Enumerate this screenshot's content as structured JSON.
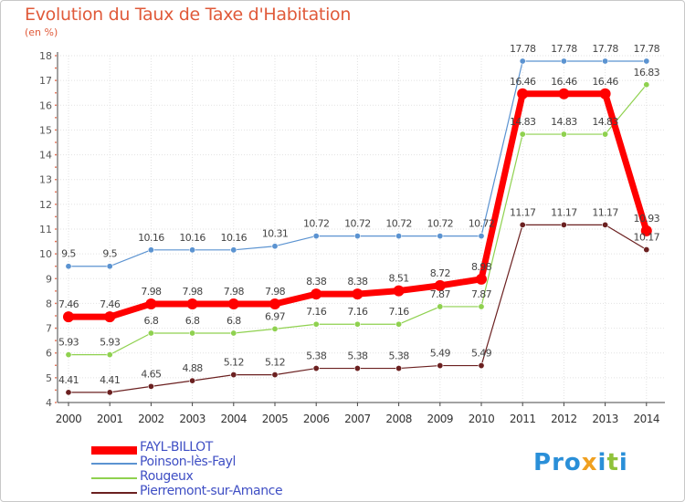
{
  "chart_data": {
    "type": "line",
    "title": "Evolution du Taux de Taxe d'Habitation",
    "subtitle": "(en %)",
    "categories": [
      "2000",
      "2001",
      "2002",
      "2003",
      "2004",
      "2005",
      "2006",
      "2007",
      "2008",
      "2009",
      "2010",
      "2011",
      "2012",
      "2013",
      "2014"
    ],
    "ylim": [
      4,
      18
    ],
    "yticks": [
      "4",
      "5",
      "6",
      "7",
      "8",
      "9",
      "10",
      "11",
      "12",
      "13",
      "14",
      "15",
      "16",
      "17",
      "18"
    ],
    "grid": true,
    "series": [
      {
        "name": "FAYL-BILLOT",
        "color": "#ff0000",
        "values": [
          7.46,
          7.46,
          7.98,
          7.98,
          7.98,
          7.98,
          8.38,
          8.38,
          8.51,
          8.72,
          8.98,
          16.46,
          16.46,
          16.46,
          10.93
        ],
        "labels": [
          "7.46",
          "7.46",
          "7.98",
          "7.98",
          "7.98",
          "7.98",
          "8.38",
          "8.38",
          "8.51",
          "8.72",
          "8.98",
          "16.46",
          "16.46",
          "16.46",
          "10.93"
        ]
      },
      {
        "name": "Poinson-lès-Fayl",
        "color": "#5b93d1",
        "values": [
          9.5,
          9.5,
          10.16,
          10.16,
          10.16,
          10.31,
          10.72,
          10.72,
          10.72,
          10.72,
          10.72,
          17.78,
          17.78,
          17.78,
          17.78
        ],
        "labels": [
          "9.5",
          "9.5",
          "10.16",
          "10.16",
          "10.16",
          "10.31",
          "10.72",
          "10.72",
          "10.72",
          "10.72",
          "10.72",
          "17.78",
          "17.78",
          "17.78",
          "17.78"
        ]
      },
      {
        "name": "Rougeux",
        "color": "#8fd14f",
        "values": [
          5.93,
          5.93,
          6.8,
          6.8,
          6.8,
          6.97,
          7.16,
          7.16,
          7.16,
          7.87,
          7.87,
          14.83,
          14.83,
          14.83,
          16.83
        ],
        "labels": [
          "5.93",
          "5.93",
          "6.8",
          "6.8",
          "6.8",
          "6.97",
          "7.16",
          "7.16",
          "7.16",
          "7.87",
          "7.87",
          "14.83",
          "14.83",
          "14.83",
          "16.83"
        ]
      },
      {
        "name": "Pierremont-sur-Amance",
        "color": "#6b2020",
        "values": [
          4.41,
          4.41,
          4.65,
          4.88,
          5.12,
          5.12,
          5.38,
          5.38,
          5.38,
          5.49,
          5.49,
          11.17,
          11.17,
          11.17,
          10.17
        ],
        "labels": [
          "4.41",
          "4.41",
          "4.65",
          "4.88",
          "5.12",
          "5.12",
          "5.38",
          "5.38",
          "5.38",
          "5.49",
          "5.49",
          "11.17",
          "11.17",
          "11.17",
          "10.17"
        ]
      }
    ],
    "legend_position": "bottom-left"
  },
  "logo": {
    "letters": [
      {
        "ch": "P",
        "color": "#2a8fd8"
      },
      {
        "ch": "r",
        "color": "#2a8fd8"
      },
      {
        "ch": "o",
        "color": "#2a8fd8"
      },
      {
        "ch": "x",
        "color": "#f0a020"
      },
      {
        "ch": "i",
        "color": "#2a8fd8"
      },
      {
        "ch": "t",
        "color": "#8fc23a"
      },
      {
        "ch": "i",
        "color": "#2a8fd8"
      }
    ]
  }
}
